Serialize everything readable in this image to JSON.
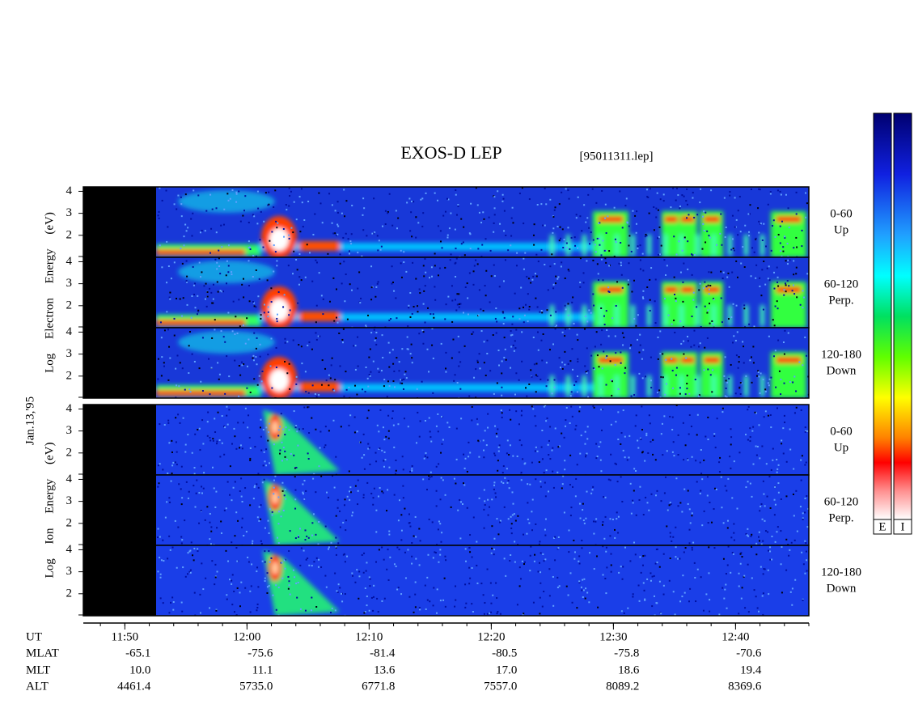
{
  "title": "EXOS-D LEP",
  "file_label": "[95011311.lep]",
  "date_label": "Jan.13,'95",
  "ylim": [
    1,
    4.2
  ],
  "yticks": [
    2,
    3,
    4
  ],
  "groups": [
    {
      "axis_label": "Log Electron Energy (eV)",
      "panels": [
        {
          "range": "0-60",
          "direction": "Up"
        },
        {
          "range": "60-120",
          "direction": "Perp."
        },
        {
          "range": "120-180",
          "direction": "Down"
        }
      ]
    },
    {
      "axis_label": "Log Ion Energy (eV)",
      "panels": [
        {
          "range": "0-60",
          "direction": "Up"
        },
        {
          "range": "60-120",
          "direction": "Perp."
        },
        {
          "range": "120-180",
          "direction": "Down"
        }
      ]
    }
  ],
  "time_axis": {
    "xlim": [
      706.6,
      766
    ],
    "xticks": [
      {
        "value": 710,
        "label": "11:50"
      },
      {
        "value": 720,
        "label": "12:00"
      },
      {
        "value": 730,
        "label": "12:10"
      },
      {
        "value": 740,
        "label": "12:20"
      },
      {
        "value": 750,
        "label": "12:30"
      },
      {
        "value": 760,
        "label": "12:40"
      }
    ]
  },
  "ephemeris": {
    "row_labels": [
      "UT",
      "MLAT",
      "MLT",
      "ALT"
    ],
    "rows": [
      [
        "-65.1",
        "-75.6",
        "-81.4",
        "-80.5",
        "-75.8",
        "-70.6"
      ],
      [
        "10.0",
        "11.1",
        "13.6",
        "17.0",
        "18.6",
        "19.4"
      ],
      [
        "4461.4",
        "5735.0",
        "6771.8",
        "7557.0",
        "8089.2",
        "8369.6"
      ]
    ]
  },
  "colorbar_labels": [
    "E",
    "I"
  ]
}
